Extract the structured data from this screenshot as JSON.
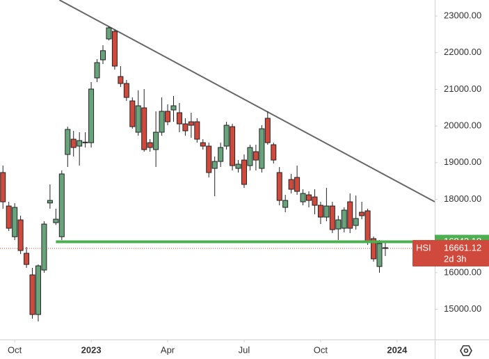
{
  "chart_data": {
    "type": "candlestick",
    "symbol": "HSI",
    "countdown": "2d 3h",
    "open": [
      18730,
      17818,
      16980,
      17439,
      16528,
      15940,
      14858,
      16072,
      17900,
      17363,
      16980,
      19223,
      19640,
      19451,
      19545,
      19545,
      21311,
      21804,
      22374,
      22582,
      21349,
      21159,
      20684,
      19830,
      20494,
      19545,
      19356,
      19830,
      20400,
      20438,
      20362,
      20058,
      20115,
      20115,
      19545,
      19451,
      18843,
      19033,
      19451,
      19982,
      18843,
      19071,
      18919,
      19299,
      18843,
      20210,
      19489,
      18730,
      17780,
      18540,
      18597,
      17932,
      18122,
      18065,
      17837,
      17515,
      17818,
      17192,
      17211,
      17932,
      17287,
      17648,
      17686,
      16927,
      16167,
      16680
    ],
    "high": [
      18920,
      17932,
      17894,
      17553,
      16699,
      16130,
      16224,
      17401,
      18407,
      17743,
      18787,
      19982,
      19868,
      19830,
      19830,
      21197,
      21823,
      22203,
      22715,
      22639,
      21633,
      21254,
      20779,
      20969,
      21007,
      19640,
      20400,
      20779,
      20590,
      20817,
      20628,
      20210,
      20362,
      20210,
      19640,
      19545,
      19166,
      19545,
      20115,
      20058,
      19071,
      19223,
      19489,
      19489,
      20020,
      20400,
      19545,
      18881,
      18122,
      18692,
      18919,
      18274,
      18217,
      18274,
      17932,
      18312,
      17932,
      17553,
      17780,
      18160,
      18103,
      17932,
      17743,
      16984,
      16889,
      16832
    ],
    "low": [
      17743,
      17135,
      16889,
      16509,
      16130,
      14744,
      14668,
      15997,
      17743,
      17300,
      16889,
      18881,
      19166,
      18919,
      19413,
      19413,
      21197,
      21690,
      22336,
      21538,
      21064,
      20684,
      19925,
      19735,
      19299,
      19299,
      18881,
      19735,
      20020,
      20115,
      19830,
      19735,
      19678,
      19545,
      19356,
      18597,
      18084,
      18881,
      19356,
      18787,
      18730,
      18312,
      18787,
      18787,
      18730,
      19489,
      18976,
      17837,
      17648,
      18160,
      18122,
      17837,
      17780,
      17591,
      17325,
      17401,
      17078,
      16889,
      17097,
      17078,
      17173,
      17458,
      16756,
      16300,
      15997,
      16453
    ],
    "close": [
      17932,
      17211,
      17780,
      16604,
      16224,
      14858,
      16186,
      17325,
      17970,
      17458,
      18692,
      19906,
      19413,
      19602,
      19560,
      21007,
      21728,
      22054,
      22677,
      21633,
      21159,
      20779,
      19982,
      20551,
      19356,
      19413,
      19830,
      20400,
      20115,
      20551,
      20058,
      19868,
      20020,
      19640,
      19451,
      18730,
      19033,
      19413,
      20020,
      18919,
      18957,
      18407,
      19413,
      19071,
      19925,
      19545,
      19071,
      17970,
      17970,
      18274,
      18217,
      18160,
      17970,
      17837,
      17515,
      17818,
      17173,
      17439,
      17705,
      17211,
      17477,
      17553,
      16832,
      16376,
      16794,
      16661.12
    ],
    "up_color": "#68a37c",
    "down_color": "#cf4a3c",
    "xlim": [
      -0.5,
      73.4
    ],
    "xticks": [
      {
        "value": 2,
        "label": "Oct"
      },
      {
        "value": 15,
        "label": "2023"
      },
      {
        "value": 28,
        "label": "Apr"
      },
      {
        "value": 41,
        "label": "Jul"
      },
      {
        "value": 54,
        "label": "Oct"
      },
      {
        "value": 67,
        "label": "2024"
      }
    ],
    "ylim": [
      14176,
      23436
    ],
    "yticks": [
      {
        "value": 15000,
        "label": "15000.00"
      },
      {
        "value": 16000,
        "label": "16000.00"
      },
      {
        "value": 18000,
        "label": "18000.00"
      },
      {
        "value": 19000,
        "label": "19000.00"
      },
      {
        "value": 20000,
        "label": "20000.00"
      },
      {
        "value": 21000,
        "label": "21000.00"
      },
      {
        "value": 22000,
        "label": "22000.00"
      },
      {
        "value": 23000,
        "label": "23000.00"
      }
    ],
    "support": {
      "value": 16842.18,
      "start": 9,
      "color": "#4caf50"
    },
    "trend_line": {
      "x": [
        9.6,
        73.4
      ],
      "y": [
        23436,
        17933
      ],
      "color": "#666666"
    }
  }
}
